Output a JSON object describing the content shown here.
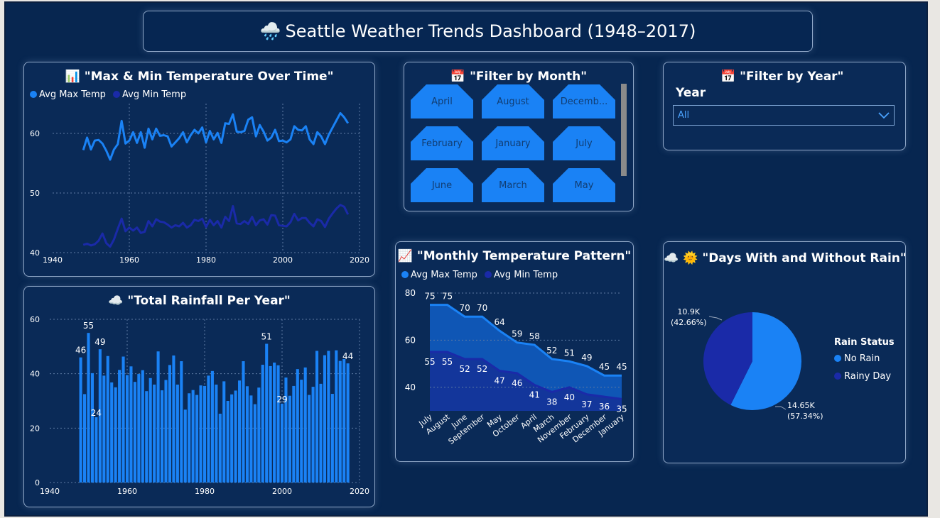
{
  "header": {
    "title": "Seattle Weather Trends Dashboard (1948–2017)",
    "icon": "rain-cloud-icon"
  },
  "temp_chart": {
    "title": "\"Max & Min Temperature Over Time\"",
    "icon": "bar-chart-icon",
    "legend": [
      "Avg Max Temp",
      "Avg Min Temp"
    ]
  },
  "rain_chart": {
    "title": "\"Total Rainfall Per Year\"",
    "icon": "cloud-icon"
  },
  "month_filter": {
    "title": "\"Filter by Month\"",
    "icon": "calendar-icon",
    "months": [
      "April",
      "August",
      "Decemb...",
      "February",
      "January",
      "July",
      "June",
      "March",
      "May"
    ]
  },
  "year_filter": {
    "title": "\"Filter by Year\"",
    "icon": "calendar-icon",
    "label": "Year",
    "selected": "All"
  },
  "monthly_chart": {
    "title": "\"Monthly Temperature Pattern\"",
    "icon": "line-chart-icon",
    "legend": [
      "Avg Max Temp",
      "Avg Min Temp"
    ]
  },
  "rain_days": {
    "title": "\"Days With and Without Rain\"",
    "icons": [
      "cloud-icon",
      "sun-face-icon"
    ],
    "legend_title": "Rain Status",
    "legend": [
      "No Rain",
      "Rainy Day"
    ],
    "label_rainy_value": "10.9K",
    "label_rainy_pct": "(42.66%)",
    "label_norain_value": "14.65K",
    "label_norain_pct": "(57.34%)"
  },
  "colors": {
    "bg": "#072650",
    "panel": "#0a2a57",
    "max": "#1a82f5",
    "min": "#1a2aa8"
  },
  "chart_data": [
    {
      "type": "line",
      "title": "\"Max & Min Temperature Over Time\"",
      "x": [
        1948,
        1949,
        1950,
        1951,
        1952,
        1953,
        1954,
        1955,
        1956,
        1957,
        1958,
        1959,
        1960,
        1961,
        1962,
        1963,
        1964,
        1965,
        1966,
        1967,
        1968,
        1969,
        1970,
        1971,
        1972,
        1973,
        1974,
        1975,
        1976,
        1977,
        1978,
        1979,
        1980,
        1981,
        1982,
        1983,
        1984,
        1985,
        1986,
        1987,
        1988,
        1989,
        1990,
        1991,
        1992,
        1993,
        1994,
        1995,
        1996,
        1997,
        1998,
        1999,
        2000,
        2001,
        2002,
        2003,
        2004,
        2005,
        2006,
        2007,
        2008,
        2009,
        2010,
        2011,
        2012,
        2013,
        2014,
        2015,
        2016,
        2017
      ],
      "series": [
        {
          "name": "Avg Max Temp",
          "values": [
            57.2,
            59.3,
            57.3,
            58.8,
            58.9,
            58.3,
            57.1,
            55.6,
            57.3,
            58.2,
            62.1,
            58.3,
            58.8,
            60.2,
            58.4,
            60.2,
            57.6,
            60.8,
            59.0,
            60.8,
            59.6,
            59.7,
            59.5,
            57.8,
            58.5,
            59.2,
            60.2,
            58.5,
            59.7,
            60.6,
            60.0,
            61.0,
            58.5,
            60.4,
            59.0,
            60.1,
            58.4,
            61.7,
            61.6,
            63.2,
            60.3,
            60.2,
            60.4,
            62.3,
            62.7,
            59.5,
            61.4,
            60.3,
            58.8,
            59.3,
            60.6,
            58.7,
            58.8,
            58.5,
            59.0,
            61.2,
            60.6,
            60.5,
            61.2,
            59.0,
            58.2,
            60.2,
            59.5,
            58.2,
            59.8,
            61.0,
            62.2,
            63.4,
            62.7,
            61.7
          ]
        },
        {
          "name": "Avg Min Temp",
          "values": [
            41.3,
            41.5,
            41.2,
            41.4,
            42.0,
            43.2,
            41.6,
            41.0,
            42.2,
            44.0,
            45.7,
            43.6,
            44.2,
            43.7,
            44.2,
            43.3,
            43.5,
            45.3,
            44.4,
            45.6,
            45.2,
            45.1,
            44.7,
            44.2,
            44.6,
            44.4,
            45.0,
            44.2,
            44.6,
            45.5,
            45.3,
            45.7,
            44.3,
            45.5,
            44.6,
            45.3,
            44.2,
            46.0,
            45.3,
            47.8,
            44.9,
            44.8,
            45.3,
            44.8,
            46.0,
            44.6,
            45.4,
            45.6,
            44.7,
            46.3,
            46.2,
            44.6,
            44.5,
            44.4,
            45.1,
            46.5,
            45.4,
            45.8,
            45.8,
            45.0,
            44.4,
            45.6,
            45.3,
            44.3,
            45.7,
            46.6,
            47.4,
            48.0,
            47.7,
            46.4
          ]
        }
      ],
      "xlim": [
        1940,
        2020
      ],
      "ylim": [
        40,
        65
      ],
      "xticks": [
        1940,
        1960,
        1980,
        2000,
        2020
      ],
      "yticks": [
        40,
        50,
        60
      ],
      "grid": true
    },
    {
      "type": "bar",
      "title": "\"Total Rainfall Per Year\"",
      "x": [
        1948,
        1949,
        1950,
        1951,
        1952,
        1953,
        1954,
        1955,
        1956,
        1957,
        1958,
        1959,
        1960,
        1961,
        1962,
        1963,
        1964,
        1965,
        1966,
        1967,
        1968,
        1969,
        1970,
        1971,
        1972,
        1973,
        1974,
        1975,
        1976,
        1977,
        1978,
        1979,
        1980,
        1981,
        1982,
        1983,
        1984,
        1985,
        1986,
        1987,
        1988,
        1989,
        1990,
        1991,
        1992,
        1993,
        1994,
        1995,
        1996,
        1997,
        1998,
        1999,
        2000,
        2001,
        2002,
        2003,
        2004,
        2005,
        2006,
        2007,
        2008,
        2009,
        2010,
        2011,
        2012,
        2013,
        2014,
        2015,
        2016,
        2017
      ],
      "values": [
        46,
        32.5,
        55,
        40.2,
        24,
        49,
        39.3,
        46.5,
        36.8,
        35,
        41.4,
        46.3,
        39.5,
        42.7,
        37,
        39.9,
        41.3,
        33.6,
        38.4,
        36,
        48.2,
        33.9,
        37.7,
        43.2,
        46.7,
        36,
        44.6,
        26.8,
        32.8,
        34,
        32.2,
        35.7,
        35.5,
        39.3,
        41,
        36,
        25.3,
        37.2,
        30,
        32.4,
        33.8,
        37.5,
        44.6,
        35.4,
        32,
        28.8,
        34.9,
        43.3,
        51,
        42.8,
        44.1,
        43.1,
        29,
        38.6,
        31.9,
        35.5,
        41.7,
        37.8,
        42.3,
        32.2,
        35.2,
        48.4,
        36.3,
        46.8,
        48.4,
        32.6,
        48.6,
        44.7,
        45.4,
        43.8
      ],
      "labels": [
        {
          "year": 1948,
          "text": "46"
        },
        {
          "year": 1950,
          "text": "55"
        },
        {
          "year": 1952,
          "text": "24"
        },
        {
          "year": 1953,
          "text": "49"
        },
        {
          "year": 1996,
          "text": "51"
        },
        {
          "year": 2000,
          "text": "29"
        },
        {
          "year": 2017,
          "text": "44"
        }
      ],
      "xlim": [
        1940,
        2020
      ],
      "ylim": [
        0,
        60
      ],
      "xticks": [
        1940,
        1960,
        1980,
        2000,
        2020
      ],
      "yticks": [
        0,
        20,
        40,
        60
      ],
      "grid": true
    },
    {
      "type": "area",
      "title": "\"Monthly Temperature Pattern\"",
      "categories": [
        "July",
        "August",
        "June",
        "September",
        "May",
        "October",
        "April",
        "March",
        "November",
        "February",
        "December",
        "January"
      ],
      "series": [
        {
          "name": "Avg Max Temp",
          "values": [
            75,
            75,
            70,
            70,
            64,
            59,
            58,
            52,
            51,
            49,
            45,
            45
          ]
        },
        {
          "name": "Avg Min Temp",
          "values": [
            55,
            55,
            52,
            52,
            47,
            46,
            41,
            38,
            40,
            37,
            36,
            35
          ]
        }
      ],
      "labels_max": [
        "75",
        "75",
        "70",
        "70",
        "64",
        "59",
        "58",
        "52",
        "51",
        "49",
        "45",
        "45"
      ],
      "labels_min": [
        "55",
        "55",
        "52",
        "52",
        "47",
        "46",
        "41",
        "38",
        "40",
        "37",
        "36",
        "35"
      ],
      "ylim": [
        30,
        80
      ],
      "yticks": [
        40,
        60,
        80
      ],
      "grid": true
    },
    {
      "type": "pie",
      "title": "\"Days With and Without Rain\"",
      "categories": [
        "No Rain",
        "Rainy Day"
      ],
      "values": [
        14650,
        10900
      ],
      "percent": [
        57.34,
        42.66
      ],
      "legend_position": "right"
    }
  ]
}
